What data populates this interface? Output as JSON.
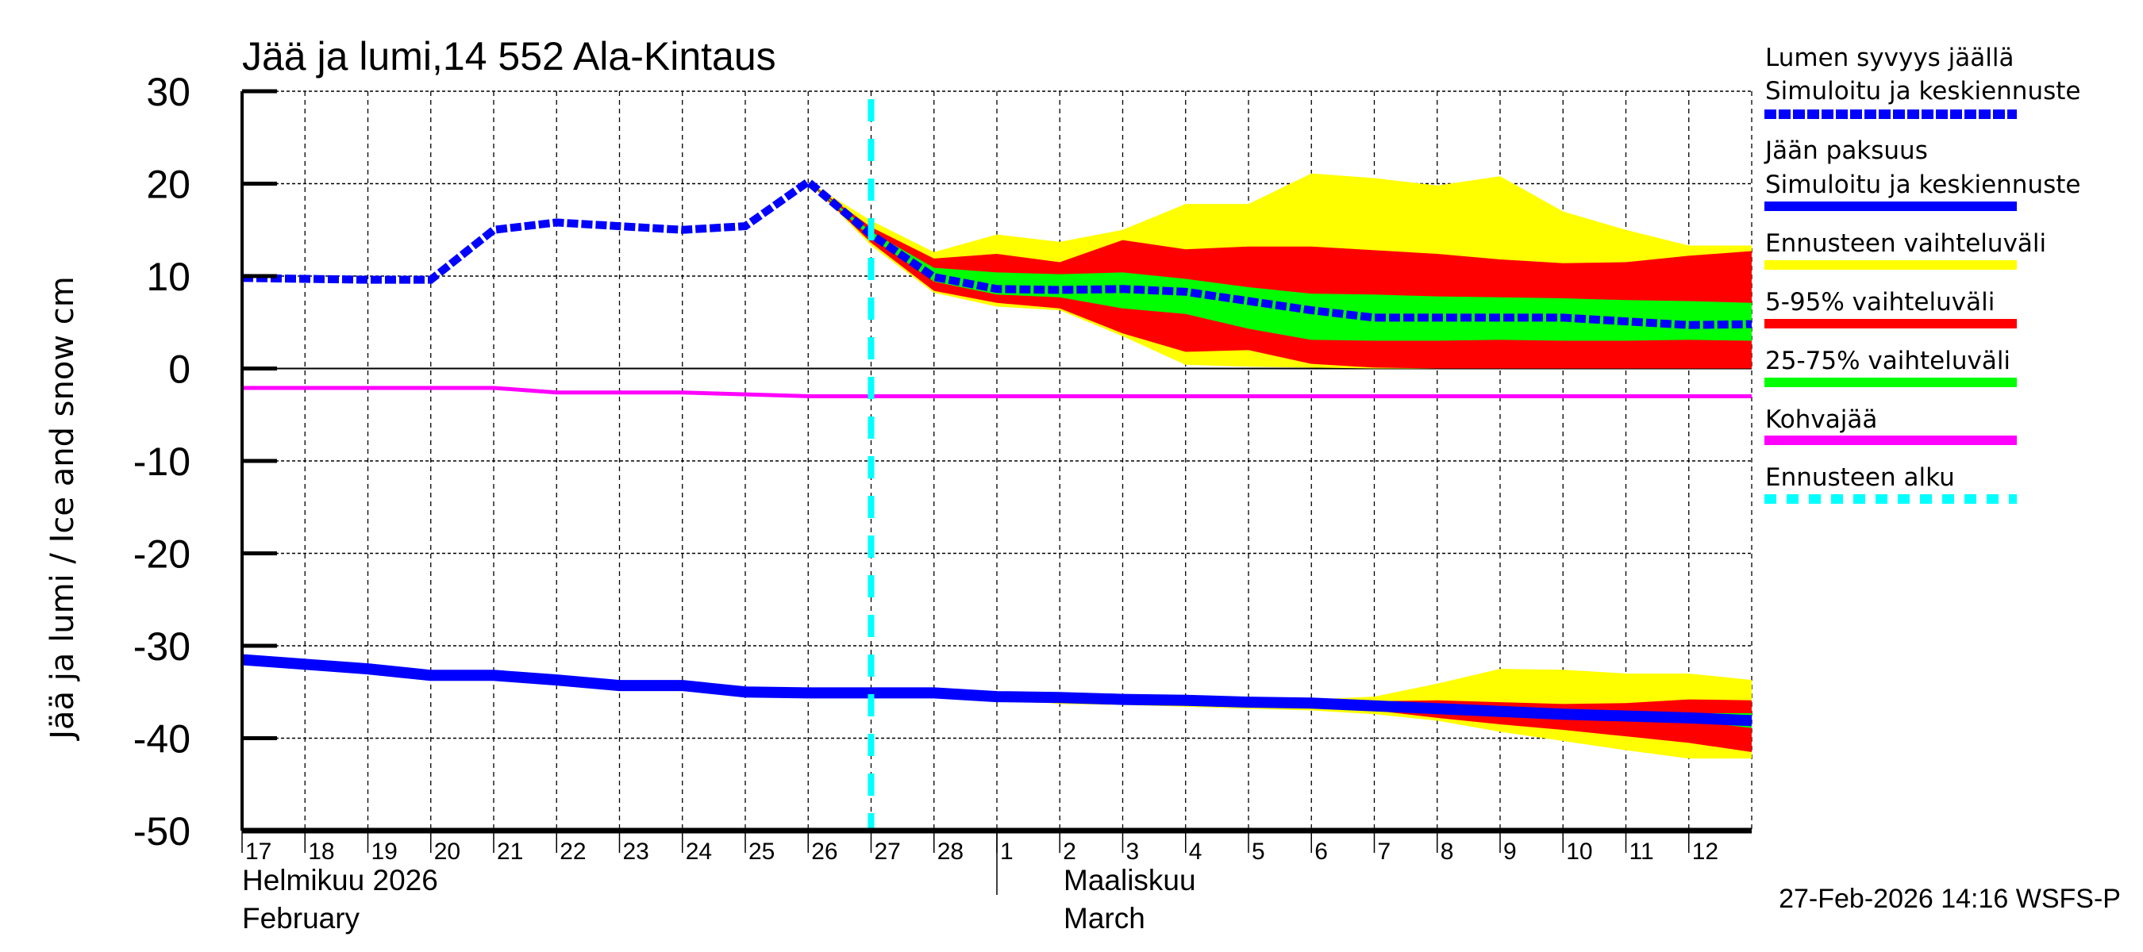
{
  "chart_data": {
    "type": "area",
    "title": "Jää ja lumi,14 552 Ala-Kintaus",
    "ylabel": "Jää ja lumi / Ice and snow    cm",
    "ylim": [
      -50,
      30
    ],
    "yticks": [
      30,
      20,
      10,
      0,
      -10,
      -20,
      -30,
      -40,
      -50
    ],
    "xlim": [
      "2026-02-17",
      "2026-03-13"
    ],
    "grid": true,
    "xtick_labels": [
      "17",
      "18",
      "19",
      "20",
      "21",
      "22",
      "23",
      "24",
      "25",
      "26",
      "27",
      "28",
      "1",
      "2",
      "3",
      "4",
      "5",
      "6",
      "7",
      "8",
      "9",
      "10",
      "11",
      "12"
    ],
    "month_labels": [
      {
        "fi": "Helmikuu  2026",
        "en": "February"
      },
      {
        "fi": "Maaliskuu",
        "en": "March"
      }
    ],
    "forecast_start": "2026-02-27",
    "timestamp": "27-Feb-2026 14:16 WSFS-P",
    "colors": {
      "snow": "#0000ff",
      "ice": "#0000ff",
      "range": "#ffff00",
      "p5_95": "#ff0000",
      "p25_75": "#00ff00",
      "slush": "#ff00ff",
      "forecast_start": "#00ffff"
    },
    "legend": [
      {
        "line1": "Lumen syvyys jäällä",
        "line2": "Simuloitu ja keskiennuste",
        "style": "dashed",
        "color": "#0000ff"
      },
      {
        "line1": "Jään paksuus",
        "line2": "Simuloitu ja keskiennuste",
        "style": "solid",
        "color": "#0000ff"
      },
      {
        "line1": "Ennusteen vaihteluväli",
        "style": "solid",
        "color": "#ffff00"
      },
      {
        "line1": "5-95% vaihteluväli",
        "style": "solid",
        "color": "#ff0000"
      },
      {
        "line1": "25-75% vaihteluväli",
        "style": "solid",
        "color": "#00ff00"
      },
      {
        "line1": "Kohvajää",
        "style": "solid",
        "color": "#ff00ff"
      },
      {
        "line1": "Ennusteen alku",
        "style": "dashed",
        "color": "#00ffff"
      }
    ],
    "snow": {
      "history_dates": [
        "2026-02-17",
        "2026-02-18",
        "2026-02-19",
        "2026-02-20",
        "2026-02-21",
        "2026-02-22",
        "2026-02-23",
        "2026-02-24",
        "2026-02-25",
        "2026-02-26",
        "2026-02-27"
      ],
      "history": [
        9.8,
        9.7,
        9.6,
        9.6,
        15.0,
        15.8,
        15.4,
        15.0,
        15.4,
        20.2,
        14.5
      ],
      "forecast_dates": [
        "2026-02-26",
        "2026-02-27",
        "2026-02-28",
        "2026-03-01",
        "2026-03-02",
        "2026-03-03",
        "2026-03-04",
        "2026-03-05",
        "2026-03-06",
        "2026-03-07",
        "2026-03-08",
        "2026-03-09",
        "2026-03-10",
        "2026-03-11",
        "2026-03-12",
        "2026-03-13"
      ],
      "range_high": [
        20.2,
        16.0,
        12.6,
        14.5,
        13.7,
        15.0,
        17.8,
        17.8,
        21.1,
        20.6,
        19.8,
        20.8,
        17.0,
        15.0,
        13.3,
        13.3
      ],
      "p95": [
        20.2,
        15.3,
        11.9,
        12.4,
        11.5,
        13.9,
        12.9,
        13.2,
        13.2,
        12.8,
        12.4,
        11.8,
        11.4,
        11.5,
        12.2,
        12.7
      ],
      "p75": [
        20.2,
        14.8,
        10.9,
        10.4,
        10.2,
        10.4,
        9.7,
        8.8,
        8.1,
        8.0,
        7.8,
        7.7,
        7.6,
        7.4,
        7.3,
        7.1
      ],
      "median": [
        20.2,
        14.5,
        9.9,
        8.6,
        8.5,
        8.6,
        8.3,
        7.3,
        6.3,
        5.5,
        5.5,
        5.5,
        5.5,
        5.1,
        4.7,
        4.8
      ],
      "p25": [
        20.2,
        14.2,
        9.4,
        8.0,
        7.7,
        6.5,
        5.9,
        4.3,
        3.1,
        3.0,
        3.0,
        3.1,
        3.0,
        3.0,
        3.1,
        3.0
      ],
      "p5": [
        20.2,
        13.6,
        8.4,
        7.1,
        6.5,
        3.8,
        1.8,
        2.0,
        0.5,
        0.1,
        0,
        0,
        0,
        0,
        0,
        0
      ],
      "range_low": [
        20.2,
        13.3,
        8.2,
        6.7,
        6.3,
        3.5,
        0.4,
        0.2,
        0.1,
        0,
        0,
        0,
        0,
        0,
        0,
        0
      ]
    },
    "ice": {
      "history_dates": [
        "2026-02-17",
        "2026-02-18",
        "2026-02-19",
        "2026-02-20",
        "2026-02-21",
        "2026-02-22",
        "2026-02-23",
        "2026-02-24",
        "2026-02-25",
        "2026-02-26",
        "2026-02-27"
      ],
      "history": [
        -31.5,
        -32.0,
        -32.5,
        -33.2,
        -33.2,
        -33.7,
        -34.3,
        -34.3,
        -35.0,
        -35.1,
        -35.1
      ],
      "forecast_dates": [
        "2026-02-28",
        "2026-03-01",
        "2026-03-02",
        "2026-03-03",
        "2026-03-04",
        "2026-03-05",
        "2026-03-06",
        "2026-03-07",
        "2026-03-08",
        "2026-03-09",
        "2026-03-10",
        "2026-03-11",
        "2026-03-12",
        "2026-03-13"
      ],
      "range_high": [
        -35.1,
        -35.5,
        -35.3,
        -35.4,
        -35.5,
        -35.7,
        -35.8,
        -35.5,
        -34.1,
        -32.5,
        -32.6,
        -33.0,
        -33.0,
        -33.7
      ],
      "p95": [
        -35.1,
        -35.5,
        -35.5,
        -35.6,
        -35.7,
        -35.9,
        -36.0,
        -36.0,
        -35.9,
        -36.1,
        -36.3,
        -36.2,
        -35.8,
        -35.9
      ],
      "p75": [
        -35.1,
        -35.5,
        -35.6,
        -35.8,
        -35.9,
        -36.1,
        -36.2,
        -36.4,
        -36.6,
        -36.9,
        -37.0,
        -37.1,
        -37.3,
        -37.3
      ],
      "median": [
        -35.1,
        -35.5,
        -35.6,
        -35.8,
        -35.9,
        -36.1,
        -36.2,
        -36.5,
        -36.8,
        -37.1,
        -37.4,
        -37.6,
        -37.8,
        -38.1
      ],
      "p25": [
        -35.1,
        -35.5,
        -35.7,
        -35.9,
        -36.0,
        -36.2,
        -36.4,
        -36.7,
        -37.1,
        -37.5,
        -37.7,
        -37.9,
        -38.1,
        -38.9
      ],
      "p5": [
        -35.1,
        -35.6,
        -36.0,
        -36.2,
        -36.4,
        -36.5,
        -36.7,
        -37.0,
        -37.8,
        -38.5,
        -39.1,
        -39.8,
        -40.5,
        -41.5
      ],
      "range_low": [
        -35.1,
        -35.7,
        -36.3,
        -36.4,
        -36.6,
        -36.8,
        -37.0,
        -37.4,
        -38.1,
        -39.3,
        -40.3,
        -41.3,
        -42.2,
        -42.2
      ]
    },
    "slush": {
      "dates": [
        "2026-02-17",
        "2026-02-21",
        "2026-02-22",
        "2026-02-24",
        "2026-02-26",
        "2026-03-13"
      ],
      "values": [
        -2.1,
        -2.1,
        -2.6,
        -2.6,
        -3.0,
        -3.0
      ]
    }
  }
}
